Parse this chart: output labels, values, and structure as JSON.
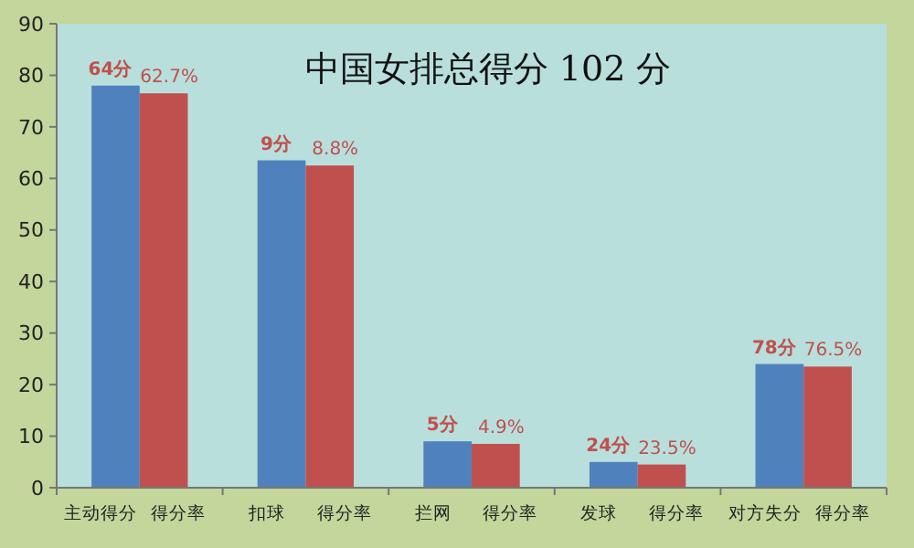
{
  "chart_data": {
    "type": "bar",
    "title": "中国女排总得分 102 分",
    "categories": [
      "主动得分",
      "得分率",
      "扣球",
      "得分率",
      "拦网",
      "得分率",
      "发球",
      "得分率",
      "对方失分",
      "得分率"
    ],
    "values": [
      78,
      76.5,
      63.5,
      62.5,
      9,
      8.5,
      5,
      4.5,
      24,
      23.5
    ],
    "colors": [
      "#4f81bd",
      "#c0504d",
      "#4f81bd",
      "#c0504d",
      "#4f81bd",
      "#c0504d",
      "#4f81bd",
      "#c0504d",
      "#4f81bd",
      "#c0504d"
    ],
    "annotations": [
      "64分",
      "62.7%",
      "9分",
      "8.8%",
      "5分",
      "4.9%",
      "24分",
      "23.5%",
      "78分",
      "76.5%"
    ],
    "ylim": [
      0,
      90
    ],
    "yticks": [
      0,
      10,
      20,
      30,
      40,
      50,
      60,
      70,
      80,
      90
    ],
    "grid": false
  }
}
